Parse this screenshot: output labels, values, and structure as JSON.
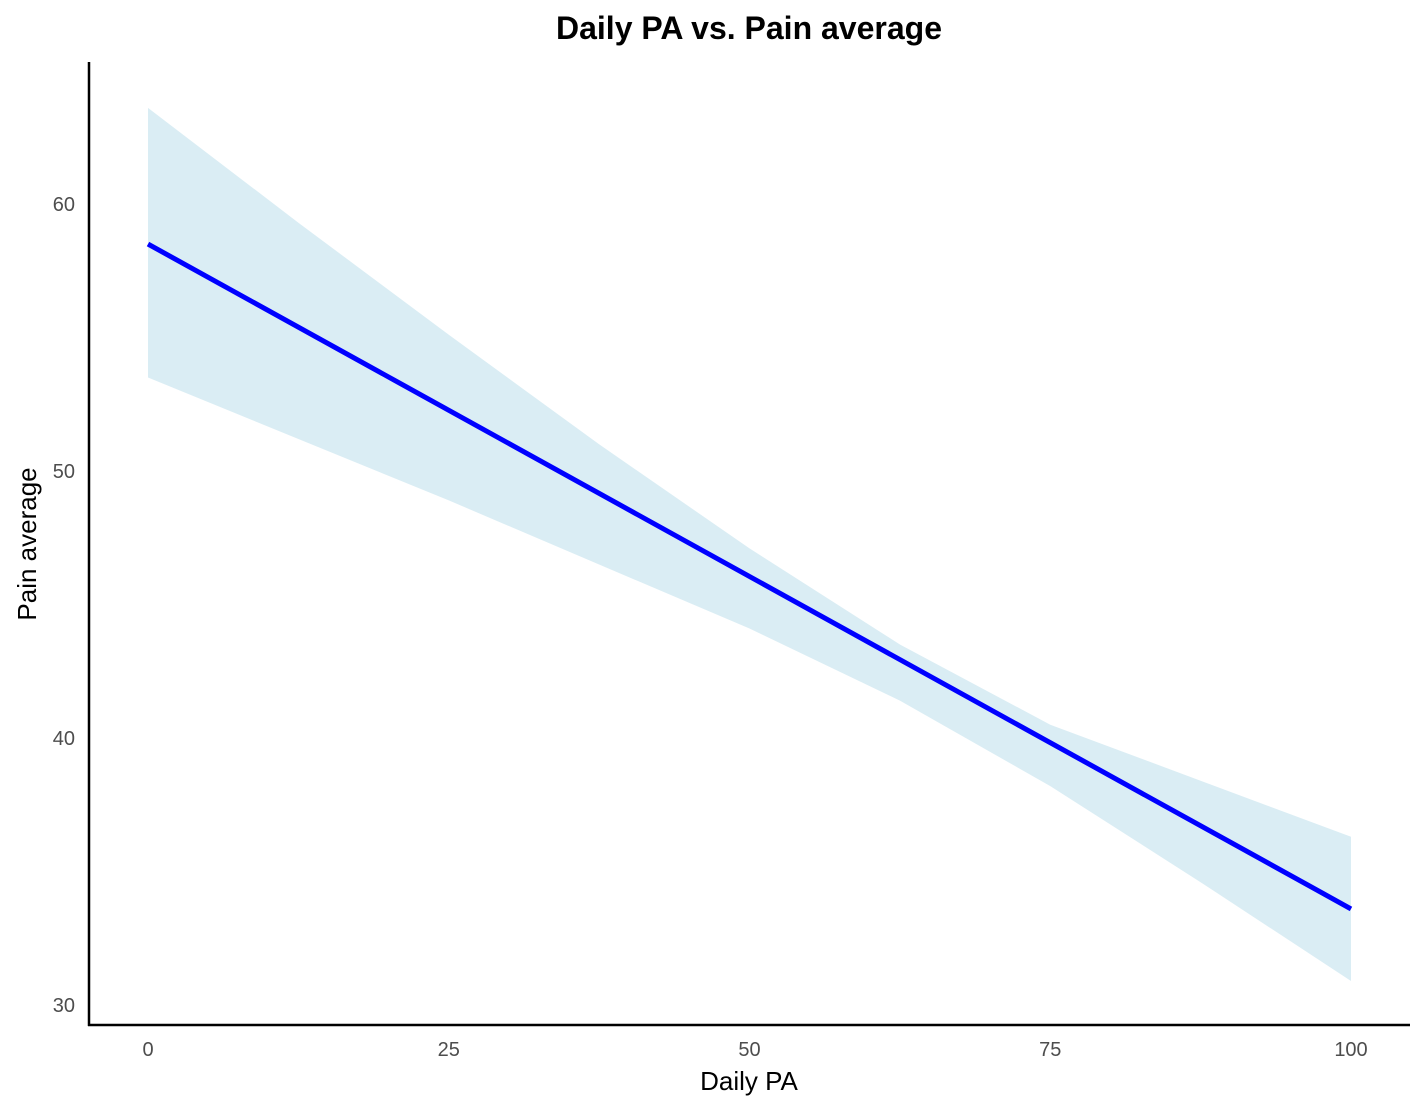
{
  "chart_data": {
    "type": "line",
    "title": "Daily PA vs. Pain average",
    "xlabel": "Daily PA",
    "ylabel": "Pain average",
    "xlim": [
      0,
      100
    ],
    "ylim": [
      30,
      62
    ],
    "x_ticks": [
      0,
      25,
      50,
      75,
      100
    ],
    "y_ticks": [
      30,
      40,
      50,
      60
    ],
    "x_tick_labels": [
      "0",
      "25",
      "50",
      "75",
      "100"
    ],
    "y_tick_labels": [
      "30",
      "40",
      "50",
      "60"
    ],
    "grid": false,
    "line_color": "#0000ff",
    "ribbon_color": "#add8e6",
    "series": [
      {
        "x": [
          0,
          100
        ],
        "fit": [
          58.5,
          33.6
        ]
      }
    ],
    "confidence_band": {
      "x": [
        0,
        12.5,
        25,
        37.5,
        50,
        62.5,
        75,
        87.5,
        100
      ],
      "lower": [
        53.5,
        51.2,
        48.9,
        46.5,
        44.1,
        41.4,
        38.2,
        34.6,
        30.9
      ],
      "upper": [
        63.6,
        59.3,
        55.1,
        51.0,
        47.1,
        43.5,
        40.5,
        38.4,
        36.3
      ]
    }
  }
}
